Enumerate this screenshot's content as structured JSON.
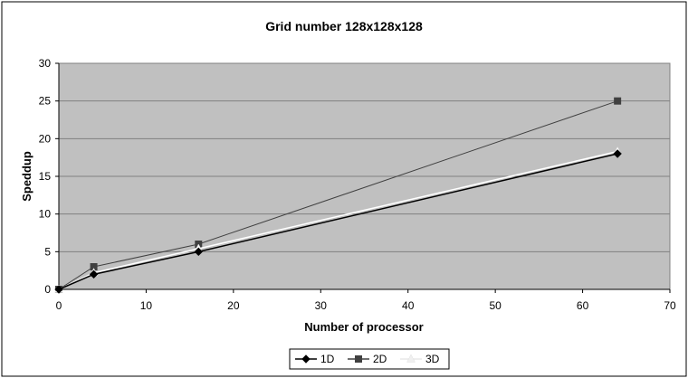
{
  "chart_data": {
    "type": "line",
    "title": "Grid number 128x128x128",
    "xlabel": "Number of processor",
    "ylabel": "Speddup",
    "xlim": [
      0,
      70
    ],
    "ylim": [
      0,
      30
    ],
    "xticks": [
      0,
      10,
      20,
      30,
      40,
      50,
      60,
      70
    ],
    "yticks": [
      0,
      5,
      10,
      15,
      20,
      25,
      30
    ],
    "grid": "horizontal",
    "legend_position": "bottom",
    "plot_background": "#c0c0c0",
    "series": [
      {
        "name": "1D",
        "marker": "diamond",
        "color": "#000000",
        "x": [
          0,
          4,
          16,
          64
        ],
        "y": [
          0,
          2,
          5,
          18
        ]
      },
      {
        "name": "2D",
        "marker": "square",
        "color": "#404040",
        "x": [
          0,
          4,
          16,
          64
        ],
        "y": [
          0,
          3,
          6,
          25
        ]
      },
      {
        "name": "3D",
        "marker": "triangle",
        "color": "#ffffff",
        "x": [
          0,
          4,
          16,
          64
        ],
        "y": [
          0,
          2.2,
          5.4,
          18.3
        ]
      }
    ]
  }
}
